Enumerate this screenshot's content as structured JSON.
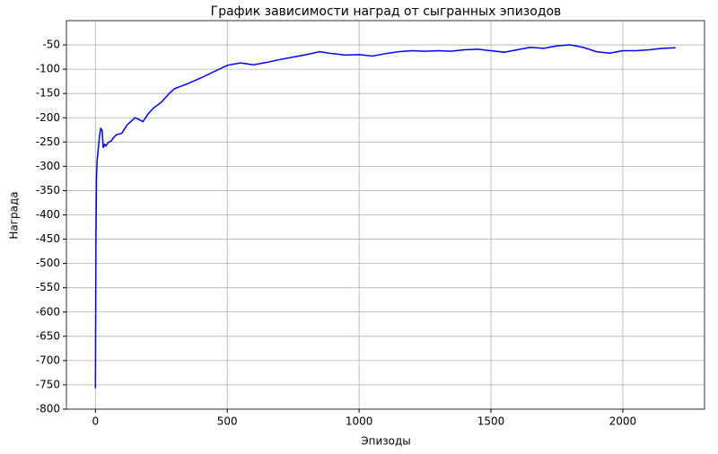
{
  "chart_data": {
    "type": "line",
    "title": "График зависимости наград от сыгранных эпизодов",
    "xlabel": "Эпизоды",
    "ylabel": "Награда",
    "x": [
      0,
      2,
      4,
      6,
      10,
      15,
      20,
      25,
      30,
      35,
      40,
      50,
      60,
      70,
      80,
      100,
      120,
      140,
      150,
      170,
      180,
      200,
      220,
      250,
      280,
      300,
      350,
      400,
      450,
      500,
      550,
      600,
      650,
      700,
      750,
      800,
      850,
      900,
      950,
      1000,
      1050,
      1100,
      1150,
      1200,
      1250,
      1300,
      1350,
      1400,
      1450,
      1500,
      1550,
      1600,
      1650,
      1700,
      1750,
      1800,
      1850,
      1900,
      1950,
      2000,
      2050,
      2100,
      2150,
      2200
    ],
    "series": [
      {
        "name": "Награда",
        "color": "#0000ff",
        "values": [
          -757,
          -450,
          -330,
          -290,
          -270,
          -240,
          -222,
          -225,
          -262,
          -255,
          -258,
          -250,
          -248,
          -240,
          -235,
          -232,
          -215,
          -205,
          -200,
          -205,
          -208,
          -192,
          -180,
          -168,
          -150,
          -140,
          -130,
          -118,
          -105,
          -92,
          -87,
          -91,
          -86,
          -80,
          -75,
          -70,
          -64,
          -68,
          -71,
          -70,
          -73,
          -68,
          -64,
          -62,
          -63,
          -62,
          -63,
          -60,
          -59,
          -62,
          -65,
          -60,
          -55,
          -57,
          -52,
          -50,
          -55,
          -64,
          -67,
          -62,
          -62,
          -60,
          -57,
          -56
        ]
      }
    ],
    "xlim": [
      -110,
      2310
    ],
    "ylim": [
      -800,
      0
    ],
    "xticks": [
      0,
      500,
      1000,
      1500,
      2000
    ],
    "yticks": [
      -800,
      -750,
      -700,
      -650,
      -600,
      -550,
      -500,
      -450,
      -400,
      -350,
      -300,
      -250,
      -200,
      -150,
      -100,
      -50
    ],
    "grid": true
  }
}
